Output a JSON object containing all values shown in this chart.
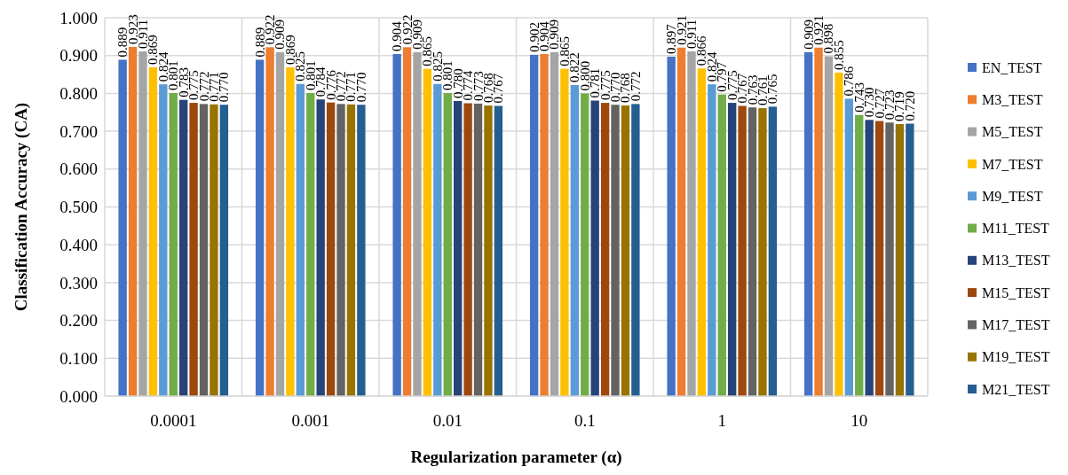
{
  "chart_data": {
    "type": "bar",
    "xlabel": "Regularization parameter (α)",
    "ylabel": "Classification Accuracy (CA)",
    "categories": [
      "0.0001",
      "0.001",
      "0.01",
      "0.1",
      "1",
      "10"
    ],
    "series": [
      {
        "name": "EN_TEST",
        "color": "#4472c4",
        "values": [
          0.889,
          0.889,
          0.904,
          0.902,
          0.897,
          0.909
        ],
        "value_labels": [
          "0.889",
          "0.889",
          "0.904",
          "0.902",
          "0.897",
          "0.909"
        ]
      },
      {
        "name": "M3_TEST",
        "color": "#ed7d31",
        "values": [
          0.923,
          0.922,
          0.922,
          0.904,
          0.921,
          0.921
        ],
        "value_labels": [
          "0.923",
          "0.922",
          "0.922",
          "0.904",
          "0.921",
          "0.921"
        ]
      },
      {
        "name": "M5_TEST",
        "color": "#a5a5a5",
        "values": [
          0.911,
          0.909,
          0.909,
          0.909,
          0.911,
          0.898
        ],
        "value_labels": [
          "0.911",
          "0.909",
          "0.909",
          "0.909",
          "0.911",
          "0.898"
        ]
      },
      {
        "name": "M7_TEST",
        "color": "#ffc000",
        "values": [
          0.869,
          0.869,
          0.865,
          0.865,
          0.866,
          0.855
        ],
        "value_labels": [
          "0.869",
          "0.869",
          "0.865",
          "0.865",
          "0.866",
          "0.855"
        ]
      },
      {
        "name": "M9_TEST",
        "color": "#5b9bd5",
        "values": [
          0.824,
          0.825,
          0.825,
          0.822,
          0.824,
          0.786
        ],
        "value_labels": [
          "0.824",
          "0.825",
          "0.825",
          "0.822",
          "0.824",
          "0.786"
        ]
      },
      {
        "name": "M11_TEST",
        "color": "#70ad47",
        "values": [
          0.801,
          0.801,
          0.801,
          0.8,
          0.797,
          0.743
        ],
        "value_labels": [
          "0.801",
          "0.801",
          "0.801",
          "0.800",
          "0.797",
          "0.743"
        ]
      },
      {
        "name": "M13_TEST",
        "color": "#264478",
        "values": [
          0.783,
          0.784,
          0.78,
          0.781,
          0.775,
          0.73
        ],
        "value_labels": [
          "0.783",
          "0.784",
          "0.780",
          "0.781",
          "0.775",
          "0.730"
        ]
      },
      {
        "name": "M15_TEST",
        "color": "#9e480e",
        "values": [
          0.775,
          0.776,
          0.774,
          0.775,
          0.767,
          0.727
        ],
        "value_labels": [
          "0.775",
          "0.776",
          "0.774",
          "0.775",
          "0.767",
          "0.727"
        ]
      },
      {
        "name": "M17_TEST",
        "color": "#636363",
        "values": [
          0.772,
          0.772,
          0.773,
          0.77,
          0.763,
          0.723
        ],
        "value_labels": [
          "0.772",
          "0.772",
          "0.773",
          "0.770",
          "0.763",
          "0.723"
        ]
      },
      {
        "name": "M19_TEST",
        "color": "#997300",
        "values": [
          0.771,
          0.771,
          0.768,
          0.768,
          0.761,
          0.719
        ],
        "value_labels": [
          "0.771",
          "0.771",
          "0.768",
          "0.768",
          "0.761",
          "0.719"
        ]
      },
      {
        "name": "M21_TEST",
        "color": "#255e91",
        "values": [
          0.77,
          0.77,
          0.767,
          0.772,
          0.765,
          0.72
        ],
        "value_labels": [
          "0.770",
          "0.770",
          "0.767",
          "0.772",
          "0.765",
          "0.720"
        ]
      }
    ],
    "ylim": [
      0,
      1
    ],
    "yticks": [
      {
        "value": 0,
        "label": "0.000"
      },
      {
        "value": 0.1,
        "label": "0.100"
      },
      {
        "value": 0.2,
        "label": "0.200"
      },
      {
        "value": 0.3,
        "label": "0.300"
      },
      {
        "value": 0.4,
        "label": "0.400"
      },
      {
        "value": 0.5,
        "label": "0.500"
      },
      {
        "value": 0.6,
        "label": "0.600"
      },
      {
        "value": 0.7,
        "label": "0.700"
      },
      {
        "value": 0.8,
        "label": "0.800"
      },
      {
        "value": 0.9,
        "label": "0.900"
      },
      {
        "value": 1,
        "label": "1.000"
      }
    ],
    "grid": true,
    "legend": "right"
  }
}
